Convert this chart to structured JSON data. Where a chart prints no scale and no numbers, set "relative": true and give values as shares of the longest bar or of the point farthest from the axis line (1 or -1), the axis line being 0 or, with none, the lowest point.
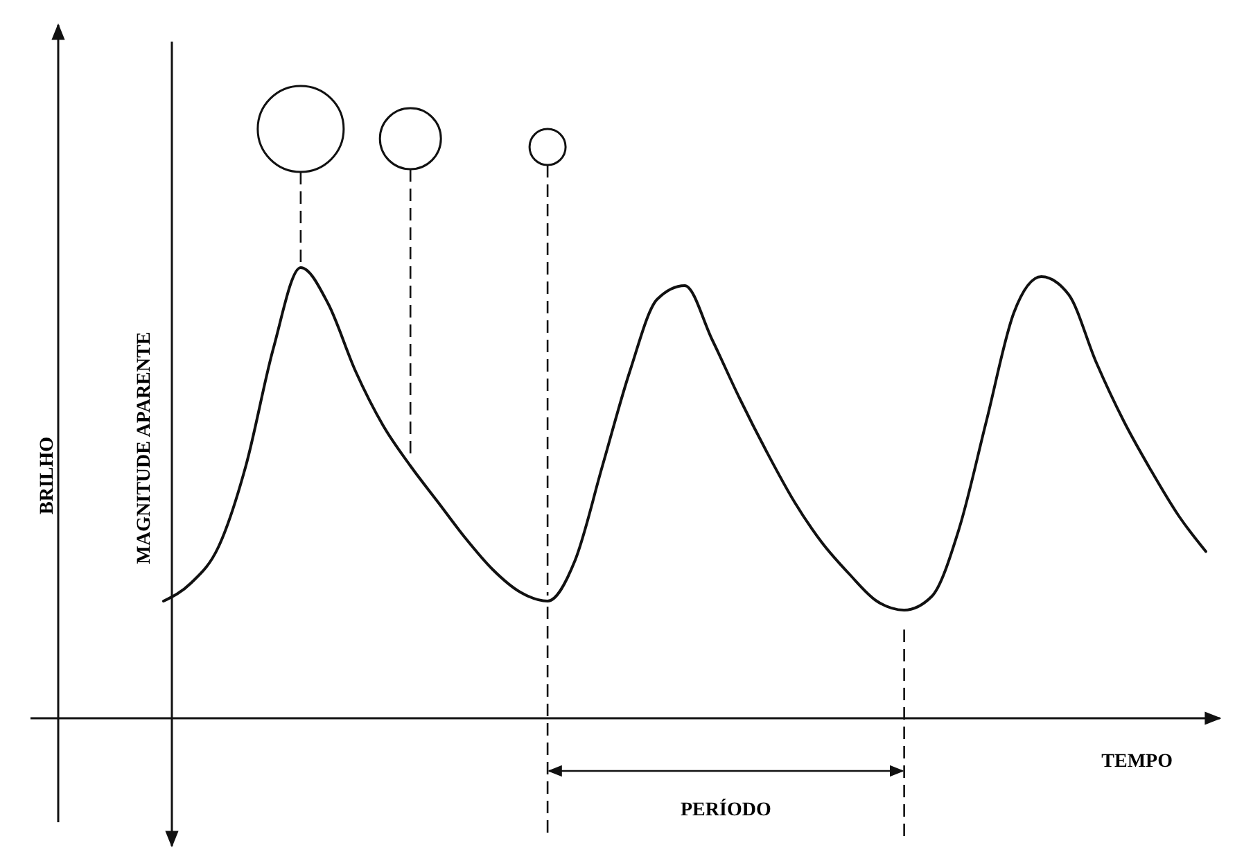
{
  "chart_data": {
    "type": "line",
    "relative": true,
    "ylabel": "BRILHO",
    "y2label": "MAGNITUDE APARENTE",
    "xlabel": "TEMPO",
    "annotations": [
      "PERÍODO"
    ],
    "color": "#111111",
    "line_style": "solid",
    "marker": "none",
    "categories": [
      null,
      null,
      null,
      null,
      null,
      null,
      null,
      null,
      null,
      null,
      null,
      null,
      null,
      null,
      null,
      null,
      null,
      null,
      null,
      null,
      null,
      null,
      null,
      null,
      null,
      null,
      null,
      null,
      null,
      null,
      null,
      null,
      null,
      null,
      null,
      null,
      null,
      null,
      null
    ],
    "values": [
      0.26,
      0.3,
      0.38,
      0.56,
      0.82,
      1,
      0.92,
      0.77,
      0.65,
      0.56,
      0.48,
      0.4,
      0.33,
      0.28,
      0.26,
      0.35,
      0.56,
      0.77,
      0.93,
      0.96,
      0.84,
      0.71,
      0.59,
      0.48,
      0.39,
      0.32,
      0.26,
      0.24,
      0.27,
      0.42,
      0.66,
      0.9,
      0.98,
      0.94,
      0.79,
      0.66,
      0.55,
      0.45,
      0.37
    ]
  }
}
